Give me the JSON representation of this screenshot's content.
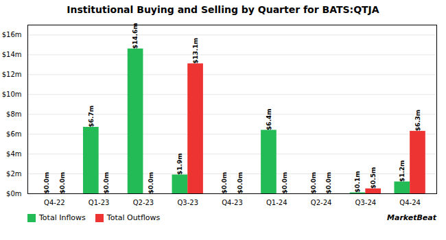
{
  "chart_data": {
    "type": "bar",
    "title": "Institutional Buying and Selling by Quarter for BATS:QTJA",
    "categories": [
      "Q4-22",
      "Q1-23",
      "Q2-23",
      "Q3-23",
      "Q4-23",
      "Q1-24",
      "Q2-24",
      "Q3-24",
      "Q4-24"
    ],
    "series": [
      {
        "name": "Total Inflows",
        "color": "#22bb55",
        "values": [
          0.0,
          6.7,
          14.6,
          1.9,
          0.0,
          6.4,
          0.0,
          0.1,
          1.2
        ],
        "value_labels": [
          "$0.0m",
          "$6.7m",
          "$14.6m",
          "$1.9m",
          "$0.0m",
          "$6.4m",
          "$0.0m",
          "$0.1m",
          "$1.2m"
        ]
      },
      {
        "name": "Total Outflows",
        "color": "#ee3333",
        "values": [
          0.0,
          0.0,
          0.0,
          13.1,
          0.0,
          0.0,
          0.0,
          0.5,
          6.3
        ],
        "value_labels": [
          "$0.0m",
          "$0.0m",
          "$0.0m",
          "$13.1m",
          "$0.0m",
          "$0.0m",
          "$0.0m",
          "$0.5m",
          "$6.3m"
        ]
      }
    ],
    "ylim": [
      0,
      17
    ],
    "yticks": [
      {
        "value": 0,
        "label": "$0m"
      },
      {
        "value": 2,
        "label": "$2m"
      },
      {
        "value": 4,
        "label": "$4m"
      },
      {
        "value": 6,
        "label": "$6m"
      },
      {
        "value": 8,
        "label": "$8m"
      },
      {
        "value": 10,
        "label": "$10m"
      },
      {
        "value": 12,
        "label": "$12m"
      },
      {
        "value": 14,
        "label": "$14m"
      },
      {
        "value": 16,
        "label": "$16m"
      }
    ],
    "grid": true,
    "legend": "lower left",
    "data_labels": true,
    "annotations": [
      "MarketBeat"
    ]
  }
}
